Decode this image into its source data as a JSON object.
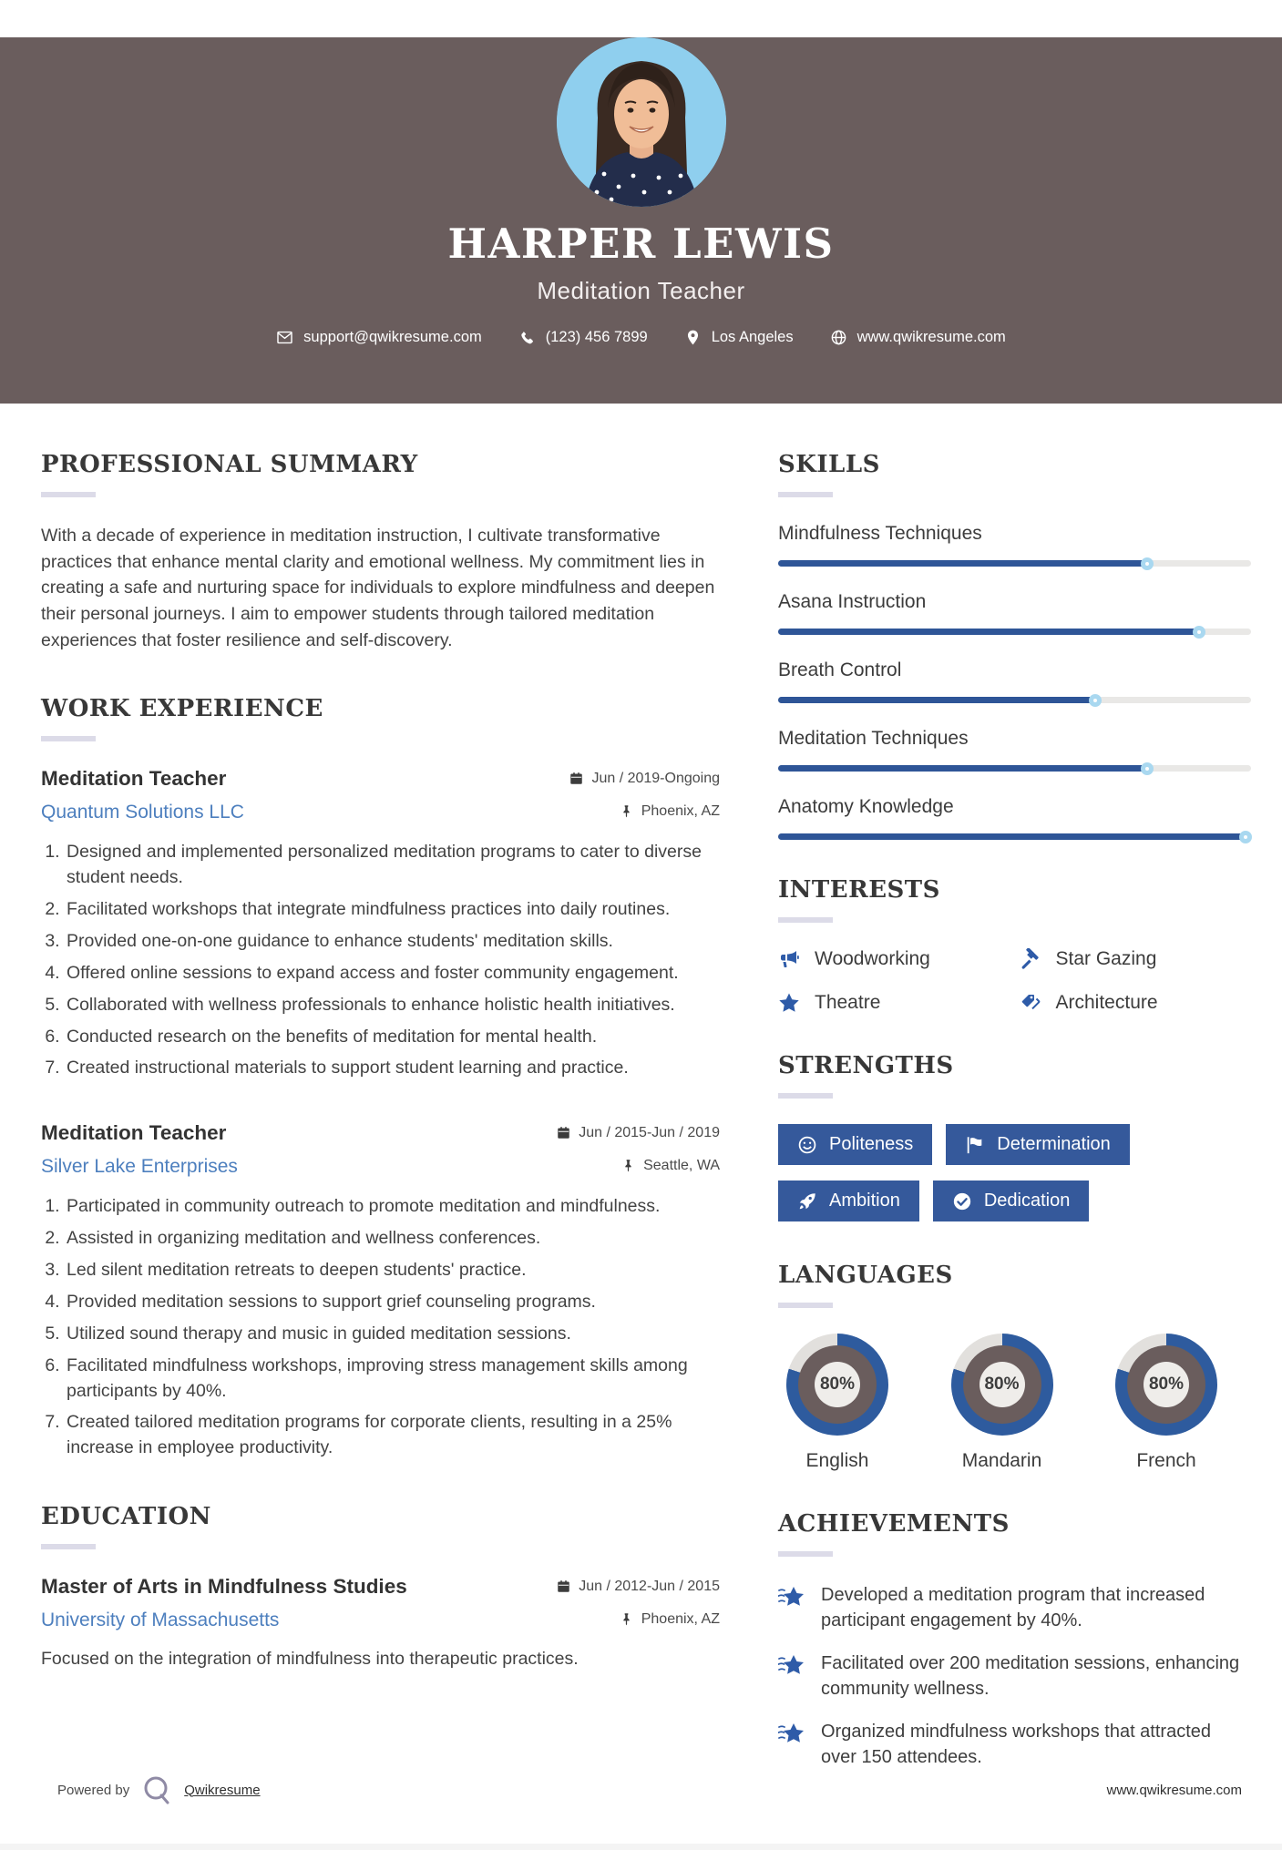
{
  "header": {
    "name": "HARPER LEWIS",
    "title": "Meditation Teacher",
    "contact": {
      "email": "support@qwikresume.com",
      "phone": "(123) 456 7899",
      "location": "Los Angeles",
      "website": "www.qwikresume.com"
    }
  },
  "summary": {
    "heading": "PROFESSIONAL SUMMARY",
    "text": "With a decade of experience in meditation instruction, I cultivate transformative practices that enhance mental clarity and emotional wellness. My commitment lies in creating a safe and nurturing space for individuals to explore mindfulness and deepen their personal journeys. I aim to empower students through tailored meditation experiences that foster resilience and self-discovery."
  },
  "work": {
    "heading": "WORK EXPERIENCE",
    "jobs": [
      {
        "title": "Meditation Teacher",
        "company": "Quantum Solutions LLC",
        "dates": "Jun / 2019-Ongoing",
        "location": "Phoenix, AZ",
        "bullets": [
          "Designed and implemented personalized meditation programs to cater to diverse student needs.",
          "Facilitated workshops that integrate mindfulness practices into daily routines.",
          "Provided one-on-one guidance to enhance students' meditation skills.",
          "Offered online sessions to expand access and foster community engagement.",
          "Collaborated with wellness professionals to enhance holistic health initiatives.",
          "Conducted research on the benefits of meditation for mental health.",
          "Created instructional materials to support student learning and practice."
        ]
      },
      {
        "title": "Meditation Teacher",
        "company": "Silver Lake Enterprises",
        "dates": "Jun / 2015-Jun / 2019",
        "location": "Seattle, WA",
        "bullets": [
          "Participated in community outreach to promote meditation and mindfulness.",
          "Assisted in organizing meditation and wellness conferences.",
          "Led silent meditation retreats to deepen students' practice.",
          "Provided meditation sessions to support grief counseling programs.",
          "Utilized sound therapy and music in guided meditation sessions.",
          "Facilitated mindfulness workshops, improving stress management skills among participants by 40%.",
          "Created tailored meditation programs for corporate clients, resulting in a 25% increase in employee productivity."
        ]
      }
    ]
  },
  "education": {
    "heading": "EDUCATION",
    "degree": "Master of Arts in Mindfulness Studies",
    "school": "University of Massachusetts",
    "dates": "Jun / 2012-Jun / 2015",
    "location": "Phoenix, AZ",
    "description": "Focused on the integration of mindfulness into therapeutic practices."
  },
  "skills": {
    "heading": "SKILLS",
    "items": [
      {
        "label": "Mindfulness Techniques",
        "percent": 78
      },
      {
        "label": "Asana Instruction",
        "percent": 89
      },
      {
        "label": "Breath Control",
        "percent": 67
      },
      {
        "label": "Meditation Techniques",
        "percent": 78
      },
      {
        "label": "Anatomy Knowledge",
        "percent": 100
      }
    ]
  },
  "interests": {
    "heading": "INTERESTS",
    "items": [
      {
        "icon": "bullhorn-icon",
        "label": "Woodworking"
      },
      {
        "icon": "gavel-icon",
        "label": "Star Gazing"
      },
      {
        "icon": "star-icon",
        "label": "Theatre"
      },
      {
        "icon": "tags-icon",
        "label": "Architecture"
      }
    ]
  },
  "strengths": {
    "heading": "STRENGTHS",
    "items": [
      {
        "icon": "smiley-icon",
        "label": "Politeness"
      },
      {
        "icon": "flag-icon",
        "label": "Determination"
      },
      {
        "icon": "rocket-icon",
        "label": "Ambition"
      },
      {
        "icon": "check-circle-icon",
        "label": "Dedication"
      }
    ]
  },
  "languages": {
    "heading": "LANGUAGES",
    "items": [
      {
        "label": "English",
        "percent": "80%"
      },
      {
        "label": "Mandarin",
        "percent": "80%"
      },
      {
        "label": "French",
        "percent": "80%"
      }
    ]
  },
  "achievements": {
    "heading": "ACHIEVEMENTS",
    "items": [
      "Developed a meditation program that increased participant engagement by 40%.",
      "Facilitated over 200 meditation sessions, enhancing community wellness.",
      "Organized mindfulness workshops that attracted over 150 attendees."
    ]
  },
  "footer": {
    "powered_by": "Powered by",
    "brand": "Qwikresume",
    "website": "www.qwikresume.com"
  },
  "colors": {
    "header_bg": "#6A5D5D",
    "accent_blue": "#35599B",
    "skill_fill_blue": "#2E5597",
    "link_blue": "#4D7FBE",
    "photo_bg": "#8FCFEE",
    "donut_blue": "#2E5B9E",
    "donut_track_gray": "#E2E0DD",
    "donut_inner_mauve": "#6A5D5D"
  }
}
